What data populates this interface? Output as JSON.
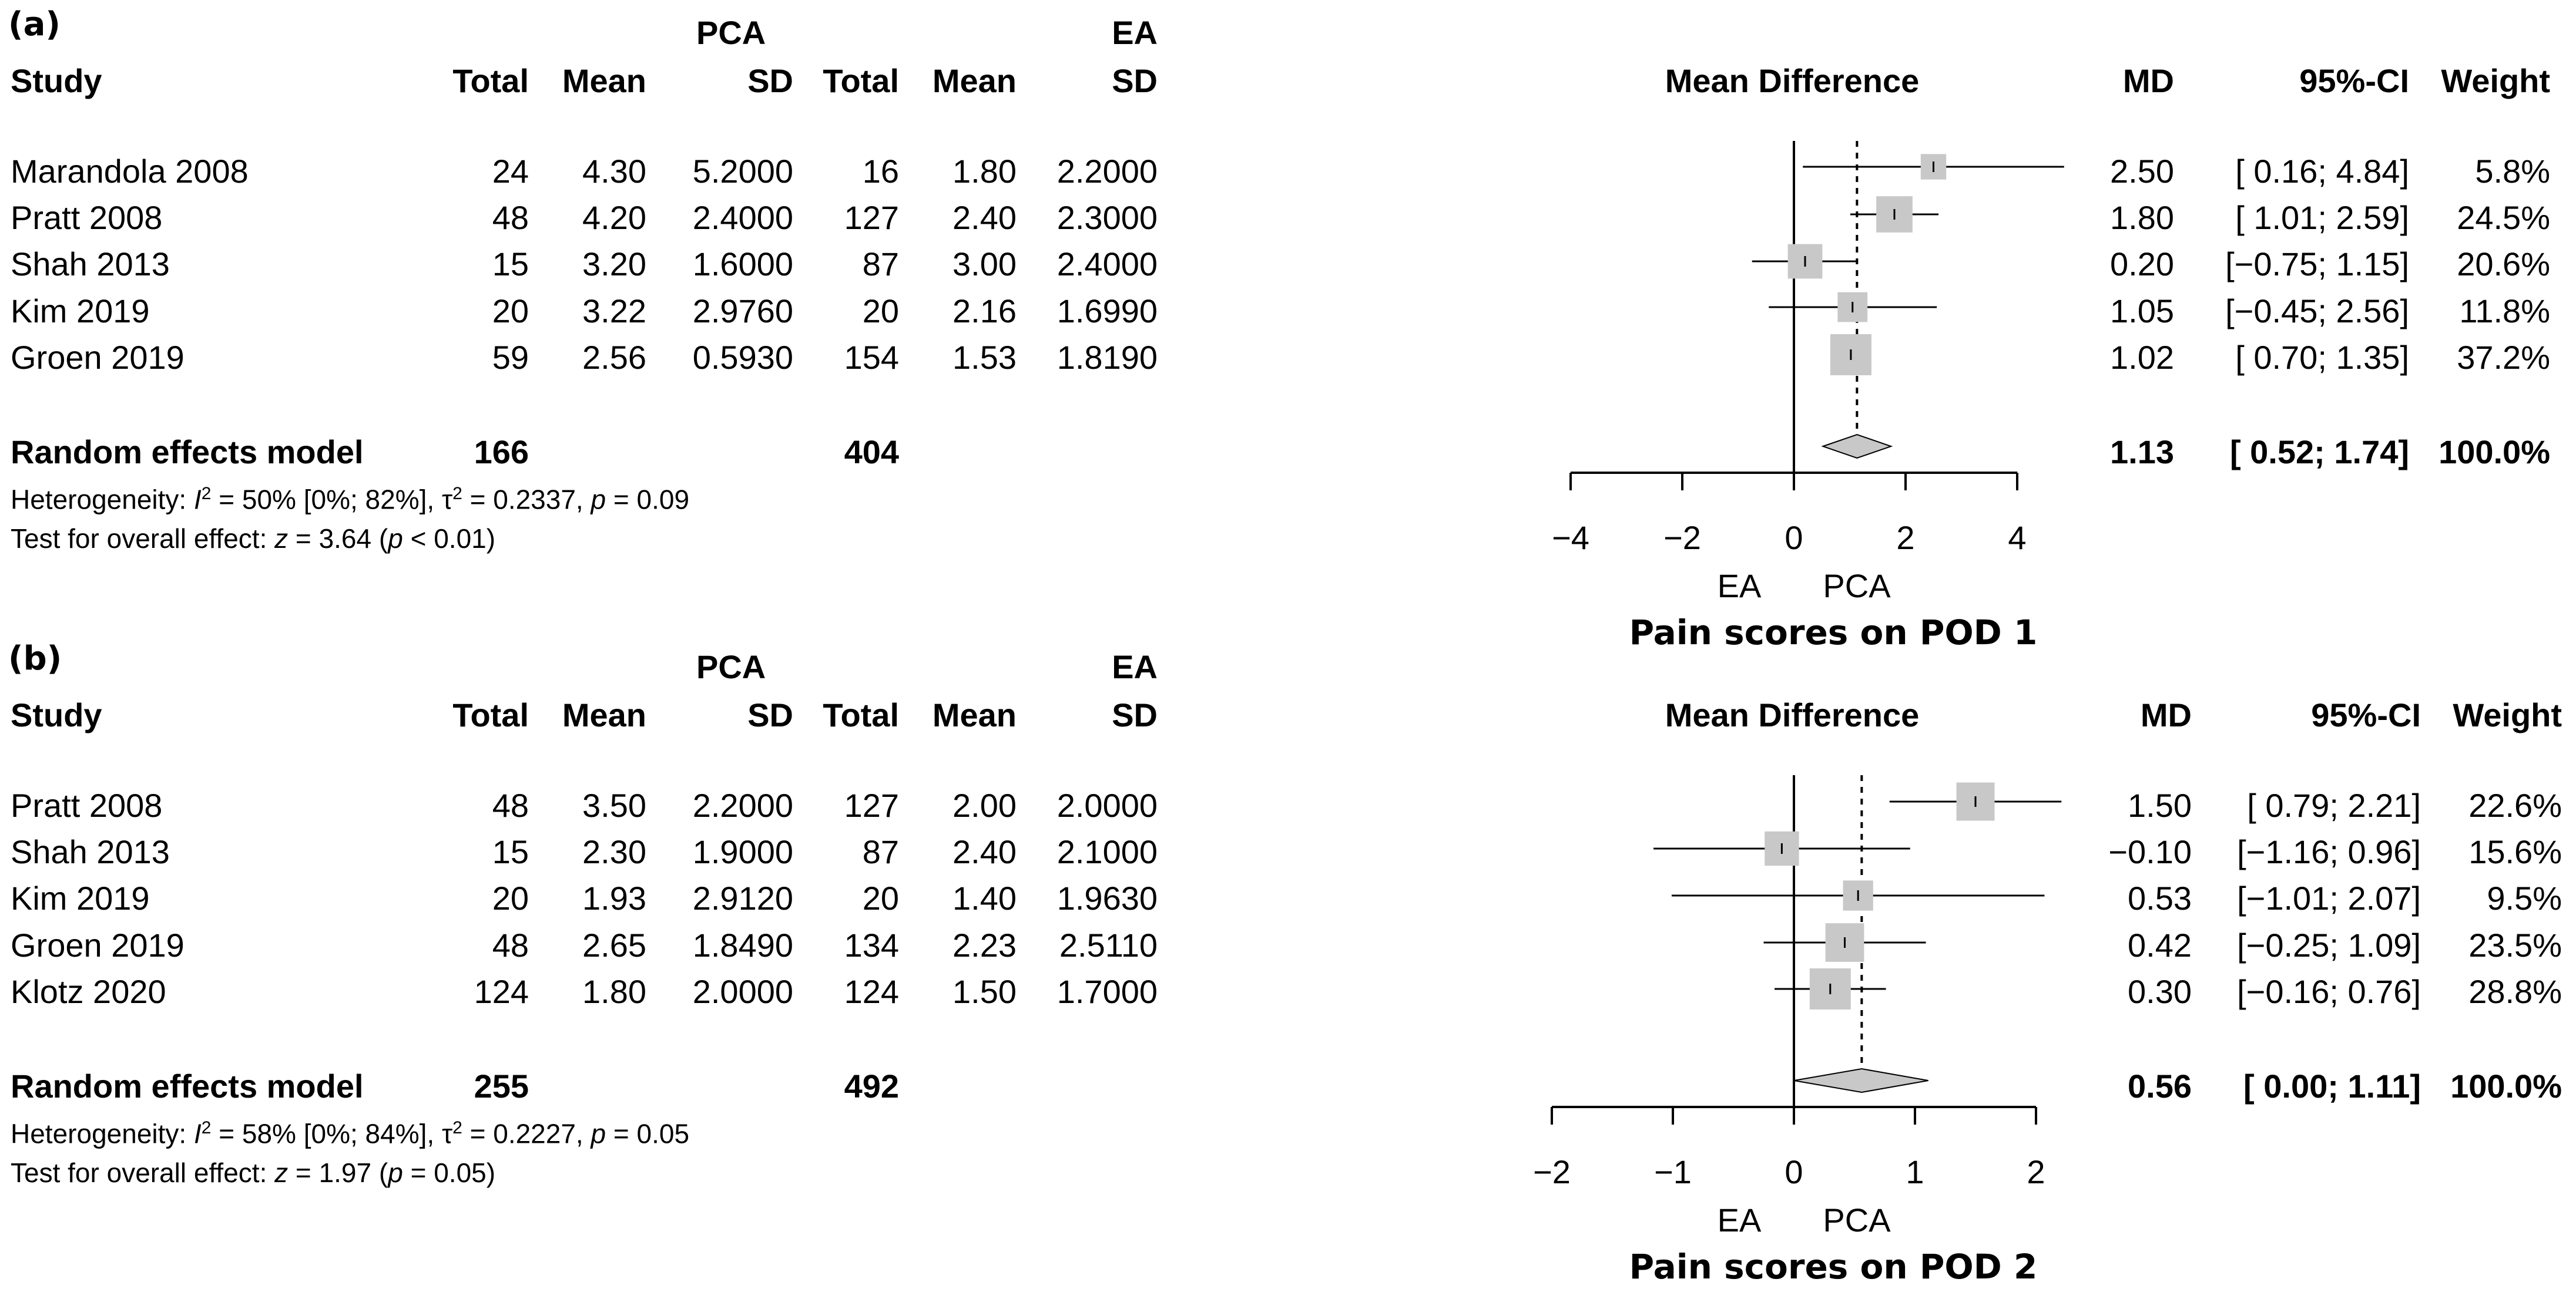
{
  "chart_data": [
    {
      "type": "forest",
      "panel_label": "(a)",
      "title": "Pain scores on POD 1",
      "group_labels": {
        "experimental": "PCA",
        "control": "EA"
      },
      "columns": {
        "study": "Study",
        "total_e": "Total",
        "mean_e": "Mean",
        "sd_e": "SD",
        "total_c": "Total",
        "mean_c": "Mean",
        "sd_c": "SD",
        "effect": "Mean Difference",
        "md": "MD",
        "ci": "95%-CI",
        "weight": "Weight"
      },
      "studies": [
        {
          "name": "Marandola 2008",
          "total_e": "24",
          "mean_e": "4.30",
          "sd_e": "5.2000",
          "total_c": "16",
          "mean_c": "1.80",
          "sd_c": "2.2000",
          "md": 2.5,
          "lo": 0.16,
          "hi": 4.84,
          "weight": 5.8,
          "md_text": "2.50",
          "ci_text": "[ 0.16; 4.84]",
          "weight_text": "5.8%"
        },
        {
          "name": "Pratt 2008",
          "total_e": "48",
          "mean_e": "4.20",
          "sd_e": "2.4000",
          "total_c": "127",
          "mean_c": "2.40",
          "sd_c": "2.3000",
          "md": 1.8,
          "lo": 1.01,
          "hi": 2.59,
          "weight": 24.5,
          "md_text": "1.80",
          "ci_text": "[ 1.01; 2.59]",
          "weight_text": "24.5%"
        },
        {
          "name": "Shah 2013",
          "total_e": "15",
          "mean_e": "3.20",
          "sd_e": "1.6000",
          "total_c": "87",
          "mean_c": "3.00",
          "sd_c": "2.4000",
          "md": 0.2,
          "lo": -0.75,
          "hi": 1.15,
          "weight": 20.6,
          "md_text": "0.20",
          "ci_text": "[−0.75; 1.15]",
          "weight_text": "20.6%"
        },
        {
          "name": "Kim 2019",
          "total_e": "20",
          "mean_e": "3.22",
          "sd_e": "2.9760",
          "total_c": "20",
          "mean_c": "2.16",
          "sd_c": "1.6990",
          "md": 1.05,
          "lo": -0.45,
          "hi": 2.56,
          "weight": 11.8,
          "md_text": "1.05",
          "ci_text": "[−0.45; 2.56]",
          "weight_text": "11.8%"
        },
        {
          "name": "Groen 2019",
          "total_e": "59",
          "mean_e": "2.56",
          "sd_e": "0.5930",
          "total_c": "154",
          "mean_c": "1.53",
          "sd_c": "1.8190",
          "md": 1.02,
          "lo": 0.7,
          "hi": 1.35,
          "weight": 37.2,
          "md_text": "1.02",
          "ci_text": "[ 0.70; 1.35]",
          "weight_text": "37.2%"
        }
      ],
      "pooled": {
        "label": "Random effects model",
        "total_e": "166",
        "total_c": "404",
        "md": 1.13,
        "lo": 0.52,
        "hi": 1.74,
        "md_text": "1.13",
        "ci_text": "[ 0.52; 1.74]",
        "weight_text": "100.0%"
      },
      "heterogeneity": {
        "prefix": "Heterogeneity: ",
        "i2_symbol": "I",
        "i2_value": " = 50% [0%; 82%], ",
        "tau_symbol": "τ",
        "tau_value": " = 0.2337, ",
        "p_symbol": "p",
        "p_value": " = 0.09"
      },
      "overall_test": {
        "prefix": "Test for overall effect: ",
        "z_symbol": "z",
        "z_value": " = 3.64 (",
        "p_symbol": "p",
        "p_value": " < 0.01)"
      },
      "x_axis": {
        "ticks": [
          -4,
          -2,
          0,
          2,
          4
        ],
        "tick_labels": [
          "−4",
          "−2",
          "0",
          "2",
          "4"
        ],
        "xlim": [
          -4,
          4
        ]
      },
      "favours": {
        "left": "EA",
        "right": "PCA"
      }
    },
    {
      "type": "forest",
      "panel_label": "(b)",
      "title": "Pain scores on POD 2",
      "group_labels": {
        "experimental": "PCA",
        "control": "EA"
      },
      "columns": {
        "study": "Study",
        "total_e": "Total",
        "mean_e": "Mean",
        "sd_e": "SD",
        "total_c": "Total",
        "mean_c": "Mean",
        "sd_c": "SD",
        "effect": "Mean Difference",
        "md": "MD",
        "ci": "95%-CI",
        "weight": "Weight"
      },
      "studies": [
        {
          "name": "Pratt 2008",
          "total_e": "48",
          "mean_e": "3.50",
          "sd_e": "2.2000",
          "total_c": "127",
          "mean_c": "2.00",
          "sd_c": "2.0000",
          "md": 1.5,
          "lo": 0.79,
          "hi": 2.21,
          "weight": 22.6,
          "md_text": "1.50",
          "ci_text": "[ 0.79; 2.21]",
          "weight_text": "22.6%"
        },
        {
          "name": "Shah 2013",
          "total_e": "15",
          "mean_e": "2.30",
          "sd_e": "1.9000",
          "total_c": "87",
          "mean_c": "2.40",
          "sd_c": "2.1000",
          "md": -0.1,
          "lo": -1.16,
          "hi": 0.96,
          "weight": 15.6,
          "md_text": "−0.10",
          "ci_text": "[−1.16; 0.96]",
          "weight_text": "15.6%"
        },
        {
          "name": "Kim 2019",
          "total_e": "20",
          "mean_e": "1.93",
          "sd_e": "2.9120",
          "total_c": "20",
          "mean_c": "1.40",
          "sd_c": "1.9630",
          "md": 0.53,
          "lo": -1.01,
          "hi": 2.07,
          "weight": 9.5,
          "md_text": "0.53",
          "ci_text": "[−1.01; 2.07]",
          "weight_text": "9.5%"
        },
        {
          "name": "Groen 2019",
          "total_e": "48",
          "mean_e": "2.65",
          "sd_e": "1.8490",
          "total_c": "134",
          "mean_c": "2.23",
          "sd_c": "2.5110",
          "md": 0.42,
          "lo": -0.25,
          "hi": 1.09,
          "weight": 23.5,
          "md_text": "0.42",
          "ci_text": "[−0.25; 1.09]",
          "weight_text": "23.5%"
        },
        {
          "name": "Klotz 2020",
          "total_e": "124",
          "mean_e": "1.80",
          "sd_e": "2.0000",
          "total_c": "124",
          "mean_c": "1.50",
          "sd_c": "1.7000",
          "md": 0.3,
          "lo": -0.16,
          "hi": 0.76,
          "weight": 28.8,
          "md_text": "0.30",
          "ci_text": "[−0.16; 0.76]",
          "weight_text": "28.8%"
        }
      ],
      "pooled": {
        "label": "Random effects model",
        "total_e": "255",
        "total_c": "492",
        "md": 0.56,
        "lo": 0.0,
        "hi": 1.11,
        "md_text": "0.56",
        "ci_text": "[ 0.00; 1.11]",
        "weight_text": "100.0%"
      },
      "heterogeneity": {
        "prefix": "Heterogeneity: ",
        "i2_symbol": "I",
        "i2_value": " = 58% [0%; 84%], ",
        "tau_symbol": "τ",
        "tau_value": " = 0.2227, ",
        "p_symbol": "p",
        "p_value": " = 0.05"
      },
      "overall_test": {
        "prefix": "Test for overall effect: ",
        "z_symbol": "z",
        "z_value": " = 1.97 (",
        "p_symbol": "p",
        "p_value": " = 0.05)"
      },
      "x_axis": {
        "ticks": [
          -2,
          -1,
          0,
          1,
          2
        ],
        "tick_labels": [
          "−2",
          "−1",
          "0",
          "1",
          "2"
        ],
        "xlim": [
          -2,
          2
        ]
      },
      "favours": {
        "left": "EA",
        "right": "PCA"
      }
    }
  ],
  "styles": {
    "box_color": "#c8c8c8",
    "line_color": "#000000",
    "diamond_fill": "#c8c8c8"
  },
  "superscripts": {
    "two": "2"
  }
}
